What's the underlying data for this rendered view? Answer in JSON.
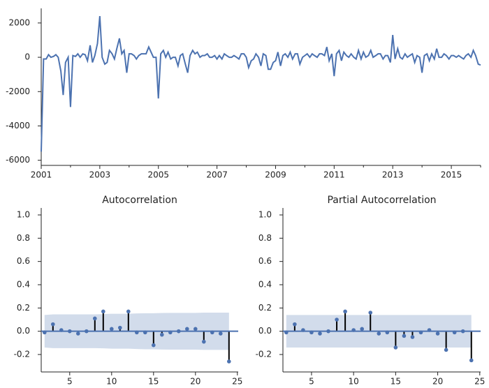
{
  "chart_data": [
    {
      "type": "line",
      "color": "#4c72b0",
      "x": [
        2001,
        2001.08,
        2001.17,
        2001.25,
        2001.33,
        2001.42,
        2001.5,
        2001.58,
        2001.67,
        2001.75,
        2001.83,
        2001.92,
        2002,
        2002.08,
        2002.17,
        2002.25,
        2002.33,
        2002.42,
        2002.5,
        2002.58,
        2002.67,
        2002.75,
        2002.83,
        2002.92,
        2003,
        2003.08,
        2003.17,
        2003.25,
        2003.33,
        2003.42,
        2003.5,
        2003.58,
        2003.67,
        2003.75,
        2003.83,
        2003.92,
        2004,
        2004.08,
        2004.17,
        2004.25,
        2004.33,
        2004.42,
        2004.5,
        2004.58,
        2004.67,
        2004.75,
        2004.83,
        2004.92,
        2005,
        2005.08,
        2005.17,
        2005.25,
        2005.33,
        2005.42,
        2005.5,
        2005.58,
        2005.67,
        2005.75,
        2005.83,
        2005.92,
        2006,
        2006.08,
        2006.17,
        2006.25,
        2006.33,
        2006.42,
        2006.5,
        2006.58,
        2006.67,
        2006.75,
        2006.83,
        2006.92,
        2007,
        2007.08,
        2007.17,
        2007.25,
        2007.33,
        2007.42,
        2007.5,
        2007.58,
        2007.67,
        2007.75,
        2007.83,
        2007.92,
        2008,
        2008.08,
        2008.17,
        2008.25,
        2008.33,
        2008.42,
        2008.5,
        2008.58,
        2008.67,
        2008.75,
        2008.83,
        2008.92,
        2009,
        2009.08,
        2009.17,
        2009.25,
        2009.33,
        2009.42,
        2009.5,
        2009.58,
        2009.67,
        2009.75,
        2009.83,
        2009.92,
        2010,
        2010.08,
        2010.17,
        2010.25,
        2010.33,
        2010.42,
        2010.5,
        2010.58,
        2010.67,
        2010.75,
        2010.83,
        2010.92,
        2011,
        2011.08,
        2011.17,
        2011.25,
        2011.33,
        2011.42,
        2011.5,
        2011.58,
        2011.67,
        2011.75,
        2011.83,
        2011.92,
        2012,
        2012.08,
        2012.17,
        2012.25,
        2012.33,
        2012.42,
        2012.5,
        2012.58,
        2012.67,
        2012.75,
        2012.83,
        2012.92,
        2013,
        2013.08,
        2013.17,
        2013.25,
        2013.33,
        2013.42,
        2013.5,
        2013.58,
        2013.67,
        2013.75,
        2013.83,
        2013.92,
        2014,
        2014.08,
        2014.17,
        2014.25,
        2014.33,
        2014.42,
        2014.5,
        2014.58,
        2014.67,
        2014.75,
        2014.83,
        2014.92,
        2015,
        2015.08,
        2015.17,
        2015.25,
        2015.33,
        2015.42,
        2015.5,
        2015.58,
        2015.67,
        2015.75,
        2015.83,
        2015.92,
        2016
      ],
      "values": [
        -5500,
        -100,
        -100,
        150,
        0,
        50,
        150,
        0,
        -800,
        -2200,
        -300,
        0,
        -2900,
        100,
        50,
        200,
        0,
        200,
        150,
        -200,
        700,
        -300,
        100,
        800,
        2400,
        0,
        -400,
        -300,
        400,
        200,
        -100,
        500,
        1100,
        200,
        400,
        -900,
        200,
        200,
        100,
        -100,
        100,
        200,
        200,
        200,
        600,
        300,
        0,
        0,
        -2400,
        200,
        400,
        0,
        300,
        -100,
        0,
        0,
        -500,
        100,
        200,
        -400,
        -900,
        100,
        400,
        200,
        300,
        0,
        100,
        100,
        200,
        0,
        0,
        100,
        -100,
        100,
        -100,
        200,
        100,
        0,
        0,
        100,
        0,
        -100,
        200,
        200,
        0,
        -600,
        -200,
        -100,
        200,
        0,
        -500,
        200,
        100,
        -700,
        -700,
        -300,
        -200,
        300,
        -500,
        100,
        200,
        0,
        300,
        -100,
        200,
        200,
        -400,
        0,
        100,
        200,
        0,
        200,
        100,
        0,
        200,
        200,
        100,
        600,
        -200,
        200,
        -1100,
        200,
        400,
        -200,
        300,
        100,
        0,
        200,
        0,
        -100,
        400,
        -100,
        300,
        0,
        100,
        400,
        0,
        100,
        200,
        200,
        -100,
        100,
        100,
        -300,
        1300,
        -100,
        500,
        0,
        -100,
        200,
        0,
        100,
        200,
        -300,
        100,
        0,
        -900,
        100,
        200,
        -200,
        200,
        -100,
        500,
        0,
        0,
        200,
        100,
        -100,
        100,
        100,
        0,
        100,
        0,
        -100,
        100,
        200,
        0,
        400,
        100,
        -400,
        -450
      ],
      "xlim": [
        2001,
        2016
      ],
      "xticks": [
        2001,
        2003,
        2005,
        2007,
        2009,
        2011,
        2013,
        2015
      ],
      "xminorticks": [
        2002,
        2004,
        2006,
        2008,
        2010,
        2012,
        2014,
        2016
      ],
      "ylim": [
        -6300,
        2850
      ],
      "yticks": [
        -6000,
        -4000,
        -2000,
        0,
        2000
      ]
    },
    {
      "type": "stem",
      "title": "Autocorrelation",
      "color": "#4c72b0",
      "x": [
        2,
        3,
        4,
        5,
        6,
        7,
        8,
        9,
        10,
        11,
        12,
        13,
        14,
        15,
        16,
        17,
        18,
        19,
        20,
        21,
        22,
        23,
        24
      ],
      "values": [
        -0.01,
        0.06,
        0.01,
        0.0,
        -0.02,
        0.0,
        0.11,
        0.17,
        0.02,
        0.03,
        0.17,
        -0.01,
        -0.01,
        -0.12,
        -0.03,
        -0.01,
        0.0,
        0.02,
        0.02,
        -0.09,
        -0.01,
        -0.02,
        -0.26
      ],
      "confint_upper": [
        0.14,
        0.145,
        0.145,
        0.145,
        0.145,
        0.145,
        0.145,
        0.147,
        0.15,
        0.15,
        0.15,
        0.153,
        0.155,
        0.155,
        0.157,
        0.158,
        0.158,
        0.158,
        0.158,
        0.16,
        0.16,
        0.16,
        0.16
      ],
      "confint_lower": [
        -0.14,
        -0.145,
        -0.145,
        -0.145,
        -0.145,
        -0.145,
        -0.145,
        -0.147,
        -0.15,
        -0.15,
        -0.15,
        -0.153,
        -0.155,
        -0.155,
        -0.157,
        -0.158,
        -0.158,
        -0.158,
        -0.158,
        -0.16,
        -0.16,
        -0.16,
        -0.16
      ],
      "xlim": [
        1.6,
        25.1
      ],
      "xticks": [
        5,
        10,
        15,
        20,
        25
      ],
      "ylim": [
        -0.35,
        1.06
      ],
      "yticks": [
        -0.2,
        {
          "value": 0,
          "label": "0.0"
        },
        0.2,
        0.4,
        0.6,
        0.8,
        {
          "value": 1,
          "label": "1.0"
        }
      ]
    },
    {
      "type": "stem",
      "title": "Partial Autocorrelation",
      "color": "#4c72b0",
      "x": [
        2,
        3,
        4,
        5,
        6,
        7,
        8,
        9,
        10,
        11,
        12,
        13,
        14,
        15,
        16,
        17,
        18,
        19,
        20,
        21,
        22,
        23,
        24
      ],
      "values": [
        -0.01,
        0.06,
        0.01,
        -0.01,
        -0.02,
        0.0,
        0.1,
        0.17,
        0.01,
        0.02,
        0.16,
        -0.02,
        -0.01,
        -0.14,
        -0.04,
        -0.05,
        -0.01,
        0.01,
        -0.02,
        -0.16,
        -0.01,
        0.0,
        -0.25
      ],
      "confint_upper": [
        0.14,
        0.14,
        0.14,
        0.14,
        0.14,
        0.14,
        0.14,
        0.14,
        0.14,
        0.14,
        0.14,
        0.14,
        0.14,
        0.14,
        0.14,
        0.14,
        0.14,
        0.14,
        0.14,
        0.14,
        0.14,
        0.14,
        0.14
      ],
      "confint_lower": [
        -0.14,
        -0.14,
        -0.14,
        -0.14,
        -0.14,
        -0.14,
        -0.14,
        -0.14,
        -0.14,
        -0.14,
        -0.14,
        -0.14,
        -0.14,
        -0.14,
        -0.14,
        -0.14,
        -0.14,
        -0.14,
        -0.14,
        -0.14,
        -0.14,
        -0.14,
        -0.14
      ],
      "xlim": [
        1.6,
        25.1
      ],
      "xticks": [
        5,
        10,
        15,
        20,
        25
      ],
      "ylim": [
        -0.35,
        1.06
      ],
      "yticks": [
        -0.2,
        {
          "value": 0,
          "label": "0.0"
        },
        0.2,
        0.4,
        0.6,
        0.8,
        {
          "value": 1,
          "label": "1.0"
        }
      ]
    }
  ]
}
